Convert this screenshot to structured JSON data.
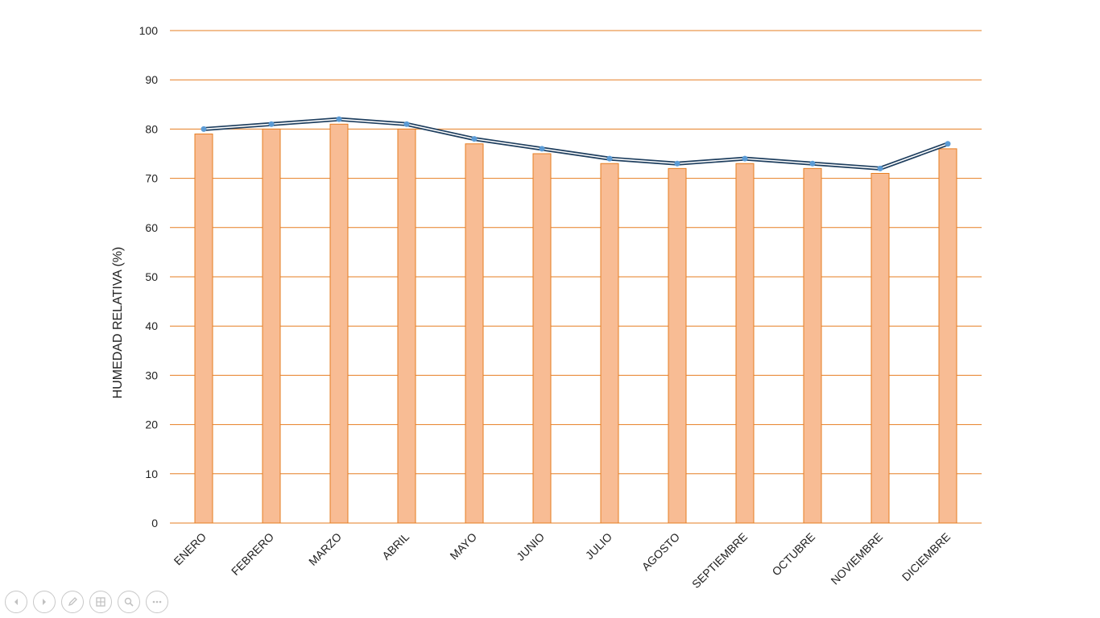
{
  "chart_data": {
    "type": "bar",
    "categories": [
      "ENERO",
      "FEBRERO",
      "MARZO",
      "ABRIL",
      "MAYO",
      "JUNIO",
      "JULIO",
      "AGOSTO",
      "SEPTIEMBRE",
      "OCTUBRE",
      "NOVIEMBRE",
      "DICIEMBRE"
    ],
    "series": [
      {
        "type": "bar",
        "values": [
          79,
          80,
          81,
          80,
          77,
          75,
          73,
          72,
          73,
          72,
          71,
          76
        ],
        "color": "#F8BC94"
      },
      {
        "type": "line",
        "values": [
          80,
          81,
          82,
          81,
          78,
          76,
          74,
          73,
          74,
          73,
          72,
          77
        ],
        "color": "#1F3F5F",
        "marker_color": "#5B9BD5"
      }
    ],
    "ylabel": "HUMEDAD RELATIVA (%)",
    "xlabel": "",
    "ylim": [
      0,
      100
    ],
    "yticks": [
      0,
      10,
      20,
      30,
      40,
      50,
      60,
      70,
      80,
      90,
      100
    ],
    "grid": true,
    "grid_color": "#E67E22",
    "bar_border_color": "#E67E22"
  },
  "nav": {
    "buttons": [
      {
        "name": "previous-slide-button",
        "icon": "arrow-left-icon"
      },
      {
        "name": "next-slide-button",
        "icon": "arrow-right-icon"
      },
      {
        "name": "pen-tool-button",
        "icon": "pen-icon"
      },
      {
        "name": "see-all-slides-button",
        "icon": "slides-grid-icon"
      },
      {
        "name": "zoom-button",
        "icon": "magnifier-icon"
      },
      {
        "name": "more-options-button",
        "icon": "ellipsis-icon"
      }
    ]
  }
}
